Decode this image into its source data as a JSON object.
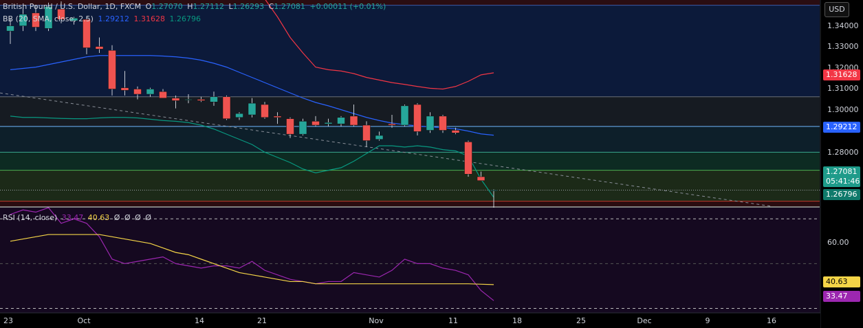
{
  "header": {
    "symbol": "British Pound / U.S. Dollar, 1D, FXCM",
    "o_label": "O",
    "o_value": "1.27070",
    "h_label": "H",
    "h_value": "1.27112",
    "l_label": "L",
    "l_value": "1.26293",
    "c_label": "C",
    "c_value": "1.27081",
    "change": "+0.00011 (+0.01%)"
  },
  "bb_legend": {
    "label": "BB (20, SMA, close, 2.5)",
    "basis": "1.29212",
    "upper": "1.31628",
    "lower": "1.26796"
  },
  "rsi_legend": {
    "label": "RSI (14, close)",
    "rsi": "33.47",
    "ma": "40.63",
    "extra": [
      "Ø",
      "Ø",
      "Ø",
      "Ø"
    ]
  },
  "currency_button": "USD",
  "price_axis": {
    "ticks": [
      "1.34000",
      "1.33000",
      "1.32000",
      "1.31000",
      "1.30000",
      "1.28000"
    ],
    "tags": {
      "upper": "1.31628",
      "basis": "1.29212",
      "close": "1.27081",
      "countdown": "05:41:46",
      "lower": "1.26796"
    }
  },
  "rsi_axis": {
    "ticks": [
      "60.00"
    ],
    "tags": {
      "ma": "40.63",
      "rsi": "33.47"
    }
  },
  "time_axis": {
    "labels": [
      "23",
      "Oct",
      "14",
      "21",
      "Nov",
      "11",
      "18",
      "25",
      "Dec",
      "9",
      "16"
    ]
  },
  "colors": {
    "up": "#26a69a",
    "down": "#ef5350",
    "bb_basis": "#2962ff",
    "bb_upper": "#f23645",
    "bb_lower": "#089981",
    "rsi": "#9c27b0",
    "rsi_ma": "#f5d547"
  },
  "chart_data": [
    {
      "type": "candlestick",
      "title": "British Pound / U.S. Dollar, 1D, FXCM",
      "y_range": [
        1.264,
        1.344
      ],
      "candles": [
        {
          "o": 1.3325,
          "h": 1.3375,
          "l": 1.3275,
          "c": 1.3345
        },
        {
          "o": 1.3345,
          "h": 1.3415,
          "l": 1.3325,
          "c": 1.339
        },
        {
          "o": 1.3395,
          "h": 1.3425,
          "l": 1.3325,
          "c": 1.334
        },
        {
          "o": 1.3335,
          "h": 1.3435,
          "l": 1.3325,
          "c": 1.342
        },
        {
          "o": 1.341,
          "h": 1.344,
          "l": 1.3355,
          "c": 1.337
        },
        {
          "o": 1.3365,
          "h": 1.338,
          "l": 1.335,
          "c": 1.3375
        },
        {
          "o": 1.337,
          "h": 1.338,
          "l": 1.3235,
          "c": 1.326
        },
        {
          "o": 1.3265,
          "h": 1.33,
          "l": 1.324,
          "c": 1.3255
        },
        {
          "o": 1.325,
          "h": 1.327,
          "l": 1.3075,
          "c": 1.31
        },
        {
          "o": 1.3105,
          "h": 1.317,
          "l": 1.3075,
          "c": 1.3095
        },
        {
          "o": 1.31,
          "h": 1.311,
          "l": 1.306,
          "c": 1.308
        },
        {
          "o": 1.308,
          "h": 1.3105,
          "l": 1.307,
          "c": 1.31
        },
        {
          "o": 1.309,
          "h": 1.31,
          "l": 1.3065,
          "c": 1.3065
        },
        {
          "o": 1.3065,
          "h": 1.3075,
          "l": 1.3025,
          "c": 1.3055
        },
        {
          "o": 1.306,
          "h": 1.308,
          "l": 1.3045,
          "c": 1.306
        },
        {
          "o": 1.306,
          "h": 1.307,
          "l": 1.305,
          "c": 1.3055
        },
        {
          "o": 1.305,
          "h": 1.309,
          "l": 1.3035,
          "c": 1.307
        },
        {
          "o": 1.307,
          "h": 1.3075,
          "l": 1.298,
          "c": 1.2985
        },
        {
          "o": 1.299,
          "h": 1.301,
          "l": 1.298,
          "c": 1.3005
        },
        {
          "o": 1.3,
          "h": 1.3065,
          "l": 1.299,
          "c": 1.3045
        },
        {
          "o": 1.304,
          "h": 1.305,
          "l": 1.2985,
          "c": 1.299
        },
        {
          "o": 1.2995,
          "h": 1.301,
          "l": 1.2965,
          "c": 1.299
        },
        {
          "o": 1.2985,
          "h": 1.299,
          "l": 1.291,
          "c": 1.2925
        },
        {
          "o": 1.2925,
          "h": 1.2985,
          "l": 1.292,
          "c": 1.2975
        },
        {
          "o": 1.2975,
          "h": 1.2995,
          "l": 1.2955,
          "c": 1.296
        },
        {
          "o": 1.2965,
          "h": 1.2985,
          "l": 1.2955,
          "c": 1.297
        },
        {
          "o": 1.2965,
          "h": 1.2995,
          "l": 1.2955,
          "c": 1.299
        },
        {
          "o": 1.2995,
          "h": 1.304,
          "l": 1.2955,
          "c": 1.296
        },
        {
          "o": 1.296,
          "h": 1.2975,
          "l": 1.2875,
          "c": 1.29
        },
        {
          "o": 1.2905,
          "h": 1.2935,
          "l": 1.29,
          "c": 1.292
        },
        {
          "o": 1.2965,
          "h": 1.3,
          "l": 1.295,
          "c": 1.296
        },
        {
          "o": 1.296,
          "h": 1.304,
          "l": 1.2955,
          "c": 1.3035
        },
        {
          "o": 1.304,
          "h": 1.3045,
          "l": 1.292,
          "c": 1.2935
        },
        {
          "o": 1.294,
          "h": 1.301,
          "l": 1.293,
          "c": 1.2995
        },
        {
          "o": 1.2995,
          "h": 1.3,
          "l": 1.293,
          "c": 1.294
        },
        {
          "o": 1.294,
          "h": 1.295,
          "l": 1.2925,
          "c": 1.293
        },
        {
          "o": 1.2895,
          "h": 1.29,
          "l": 1.276,
          "c": 1.277
        },
        {
          "o": 1.276,
          "h": 1.278,
          "l": 1.2745,
          "c": 1.2745
        },
        {
          "o": 1.2707,
          "h": 1.2711,
          "l": 1.2629,
          "c": 1.2708
        }
      ],
      "bb_basis": [
        1.3175,
        1.318,
        1.3185,
        1.3195,
        1.3205,
        1.3215,
        1.3225,
        1.323,
        1.323,
        1.323,
        1.323,
        1.323,
        1.3228,
        1.3225,
        1.322,
        1.3212,
        1.32,
        1.3185,
        1.3165,
        1.3145,
        1.3125,
        1.3105,
        1.3085,
        1.3065,
        1.3048,
        1.3035,
        1.302,
        1.3005,
        1.299,
        1.2978,
        1.2968,
        1.2962,
        1.2957,
        1.2953,
        1.295,
        1.2946,
        1.2937,
        1.2926,
        1.2921
      ],
      "bb_upper": [
        1.35,
        1.35,
        1.35,
        1.35,
        1.35,
        1.35,
        1.35,
        1.35,
        1.35,
        1.35,
        1.35,
        1.35,
        1.35,
        1.35,
        1.35,
        1.35,
        1.35,
        1.35,
        1.35,
        1.35,
        1.345,
        1.338,
        1.33,
        1.324,
        1.3185,
        1.3175,
        1.317,
        1.316,
        1.3145,
        1.3135,
        1.3125,
        1.3118,
        1.311,
        1.3103,
        1.31,
        1.311,
        1.313,
        1.3155,
        1.3163
      ],
      "bb_lower": [
        1.2995,
        1.299,
        1.299,
        1.2988,
        1.2986,
        1.2985,
        1.2985,
        1.2988,
        1.299,
        1.299,
        1.2988,
        1.2983,
        1.2978,
        1.2975,
        1.297,
        1.296,
        1.2945,
        1.2925,
        1.2905,
        1.2885,
        1.2855,
        1.2835,
        1.2815,
        1.279,
        1.2775,
        1.2785,
        1.2795,
        1.282,
        1.285,
        1.288,
        1.288,
        1.2875,
        1.288,
        1.2875,
        1.2865,
        1.286,
        1.284,
        1.275,
        1.268
      ],
      "levels": [
        1.3425,
        1.307,
        1.2955,
        1.2855,
        1.2785,
        1.2665
      ]
    },
    {
      "type": "line",
      "title": "RSI (14, close)",
      "y_range": [
        28,
        75
      ],
      "series": [
        {
          "name": "RSI",
          "values": [
            72,
            74,
            73,
            75,
            68,
            70,
            68,
            62,
            52,
            50,
            51,
            52,
            53,
            50,
            49,
            48,
            49,
            49,
            48,
            51,
            47,
            45,
            43,
            42,
            41,
            42,
            42,
            46,
            45,
            44,
            47,
            52,
            50,
            50,
            48,
            47,
            45,
            38,
            33.47
          ]
        },
        {
          "name": "RSI MA",
          "values": [
            60,
            61,
            62,
            63,
            63,
            63,
            63,
            63,
            62,
            61,
            60,
            59,
            57,
            55,
            54,
            52,
            50,
            48,
            46,
            45,
            44,
            43,
            42,
            42,
            41,
            41,
            41,
            41,
            41,
            41,
            41,
            41,
            41,
            41,
            41,
            41,
            41,
            40.8,
            40.63
          ]
        }
      ],
      "levels": [
        70,
        50,
        30
      ]
    }
  ]
}
